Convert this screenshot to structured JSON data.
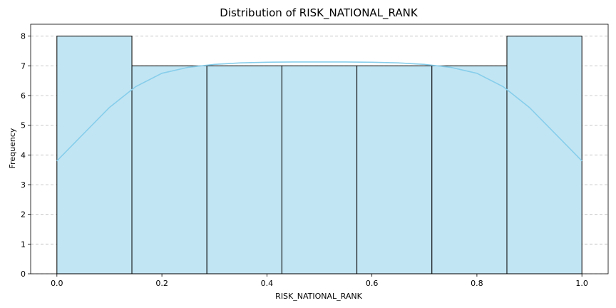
{
  "chart_data": {
    "type": "bar",
    "title": "Distribution of RISK_NATIONAL_RANK",
    "xlabel": "RISK_NATIONAL_RANK",
    "ylabel": "Frequency",
    "bin_edges": [
      0.0,
      0.142857,
      0.285714,
      0.428571,
      0.571429,
      0.714286,
      0.857143,
      1.0
    ],
    "values": [
      8,
      7,
      7,
      7,
      7,
      7,
      8
    ],
    "xlim": [
      -0.05,
      1.05
    ],
    "ylim": [
      0,
      8.4
    ],
    "xticks": [
      0.0,
      0.2,
      0.4,
      0.6,
      0.8,
      1.0
    ],
    "xtick_labels": [
      "0.0",
      "0.2",
      "0.4",
      "0.6",
      "0.8",
      "1.0"
    ],
    "yticks": [
      0,
      1,
      2,
      3,
      4,
      5,
      6,
      7,
      8
    ],
    "ytick_labels": [
      "0",
      "1",
      "2",
      "3",
      "4",
      "5",
      "6",
      "7",
      "8"
    ],
    "kde": {
      "x": [
        0.0,
        0.05,
        0.1,
        0.15,
        0.2,
        0.25,
        0.3,
        0.35,
        0.4,
        0.45,
        0.5,
        0.55,
        0.6,
        0.65,
        0.7,
        0.75,
        0.8,
        0.85,
        0.9,
        0.95,
        1.0
      ],
      "y": [
        3.8,
        4.7,
        5.6,
        6.3,
        6.75,
        6.95,
        7.05,
        7.1,
        7.12,
        7.13,
        7.13,
        7.13,
        7.12,
        7.1,
        7.05,
        6.95,
        6.75,
        6.3,
        5.6,
        4.7,
        3.8
      ]
    },
    "grid": "y",
    "bar_color": "#c2e5f3",
    "line_color": "#87ceeb"
  }
}
